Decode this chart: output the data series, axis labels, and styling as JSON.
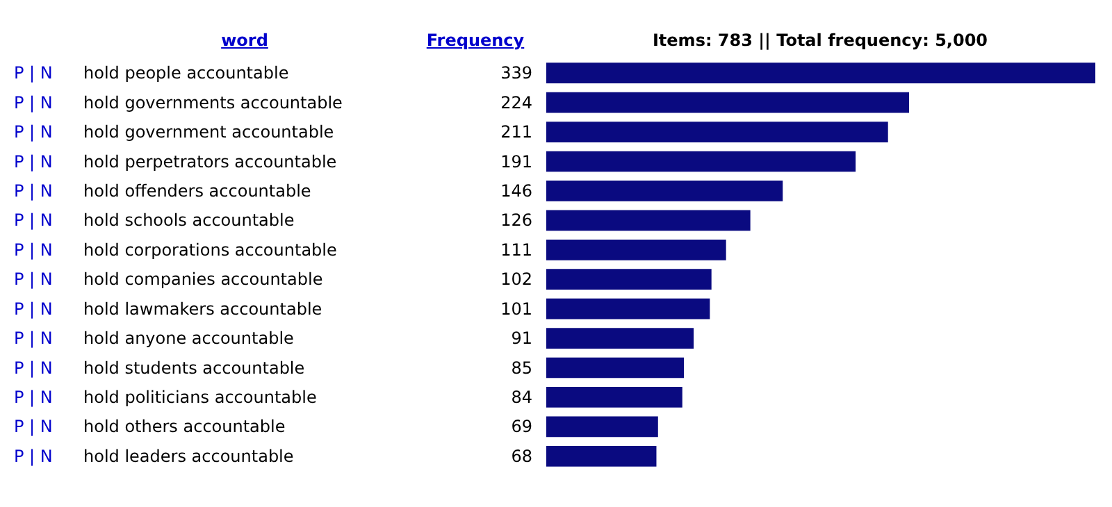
{
  "chart_data": {
    "type": "bar",
    "orientation": "horizontal",
    "title": "Items: 783 || Total frequency: 5,000",
    "ylabel": "word",
    "xlabel": "Frequency",
    "annotations": [
      "P | N"
    ],
    "categories": [
      "hold people accountable",
      "hold governments accountable",
      "hold government accountable",
      "hold perpetrators accountable",
      "hold offenders accountable",
      "hold schools accountable",
      "hold corporations accountable",
      "hold companies accountable",
      "hold lawmakers accountable",
      "hold anyone accountable",
      "hold students accountable",
      "hold politicians accountable",
      "hold others accountable",
      "hold leaders accountable"
    ],
    "values": [
      339,
      224,
      211,
      191,
      146,
      126,
      111,
      102,
      101,
      91,
      85,
      84,
      69,
      68
    ],
    "color": "#0a0a80",
    "data_labels": true
  }
}
